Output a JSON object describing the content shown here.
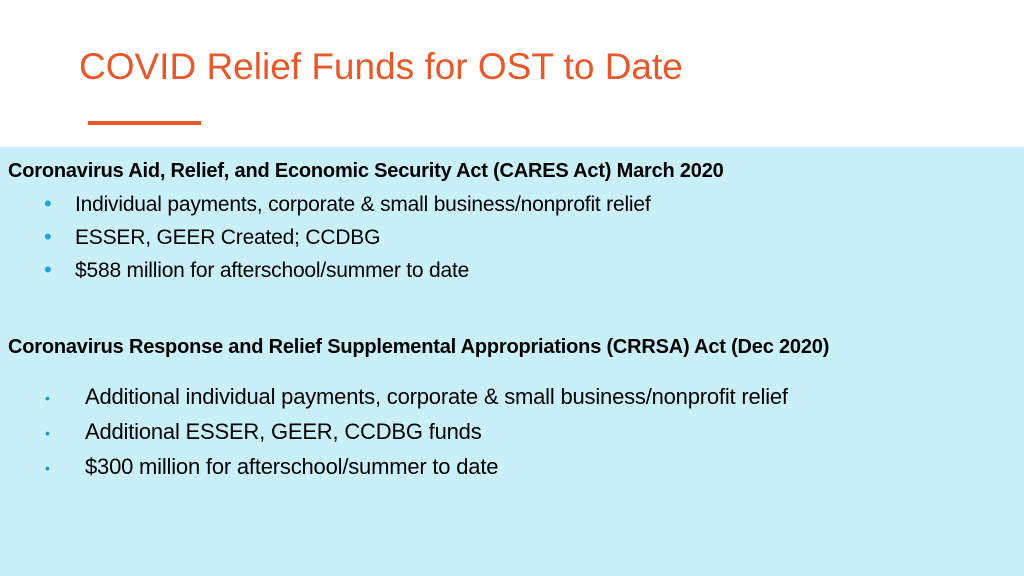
{
  "title": "COVID Relief Funds for OST to Date",
  "colors": {
    "accent": "#e8582a",
    "panel": "#c9f0f8",
    "bullet": "#1ca3e0"
  },
  "sections": [
    {
      "heading": "Coronavirus Aid, Relief, and Economic Security Act (CARES Act) March 2020",
      "items": [
        "Individual payments, corporate & small business/nonprofit relief",
        "ESSER, GEER Created; CCDBG",
        "$588 million for afterschool/summer to date"
      ]
    },
    {
      "heading": "Coronavirus Response and Relief Supplemental Appropriations (CRRSA) Act (Dec 2020)",
      "items": [
        "Additional individual payments, corporate & small business/nonprofit relief",
        "Additional ESSER, GEER, CCDBG funds",
        "$300 million for afterschool/summer to date"
      ]
    }
  ]
}
